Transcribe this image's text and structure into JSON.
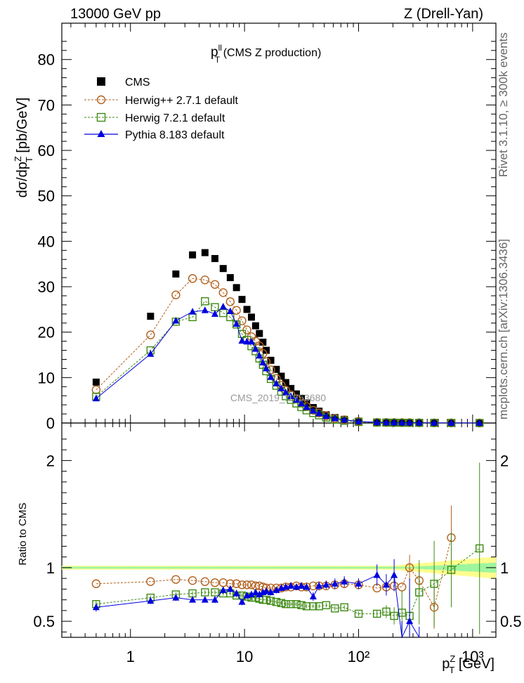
{
  "header": {
    "energy": "13000 GeV pp",
    "process": "Z (Drell-Yan)",
    "title_main": "p",
    "title_sup": "ll",
    "title_sub": "T",
    "title_rest": " (CMS Z production)",
    "watermark": "CMS_2019_I1753680",
    "side_top": "Rivet 3.1.10, ≥ 300k events",
    "side_bottom": "mcplots.cern.ch [arXiv:1306.3436]"
  },
  "legend": [
    {
      "label": "CMS",
      "color": "#000000",
      "marker": "square-filled"
    },
    {
      "label": "Herwig++ 2.7.1 default",
      "color": "#b2601c",
      "marker": "circle-open"
    },
    {
      "label": "Herwig 7.2.1 default",
      "color": "#3e8a14",
      "marker": "square-open"
    },
    {
      "label": "Pythia 8.183 default",
      "color": "#0000dd",
      "marker": "triangle-filled"
    }
  ],
  "chart_data": [
    {
      "type": "scatter",
      "panel": "main",
      "title": "pT^ll (CMS Z production)",
      "xlabel": "p_T^Z [GeV]",
      "ylabel": "dσ/dp_T^Z [pb/GeV]",
      "xscale": "log",
      "xlim": [
        0.25,
        1600
      ],
      "ylim": [
        0,
        88
      ],
      "yticks": [
        0,
        10,
        20,
        30,
        40,
        50,
        60,
        70,
        80
      ],
      "x": [
        0.5,
        1.5,
        2.5,
        3.5,
        4.5,
        5.5,
        6.5,
        7.5,
        8.5,
        9.5,
        10.5,
        11.5,
        12.5,
        13.5,
        14.5,
        15.5,
        17,
        19,
        21,
        23,
        25.5,
        28.5,
        31.5,
        35,
        40,
        45,
        52,
        62,
        75,
        100,
        145,
        175,
        205,
        240,
        280,
        340,
        460,
        650,
        1150
      ],
      "series": [
        {
          "name": "CMS",
          "values": [
            9,
            23.5,
            32.8,
            37,
            37.5,
            36.2,
            34,
            32,
            29.8,
            27.2,
            25,
            23.3,
            21.4,
            19.7,
            17.8,
            16,
            13.8,
            11.8,
            10.3,
            8.9,
            7.6,
            6.4,
            5.4,
            4.4,
            3.4,
            2.6,
            1.8,
            1.2,
            0.8,
            0.4,
            0.2,
            0.15,
            0.12,
            0.1,
            0.08,
            0.06,
            0.04,
            0.02,
            0.01
          ]
        },
        {
          "name": "Herwig++ 2.7.1 default",
          "values": [
            7.3,
            19.4,
            28.2,
            31.8,
            31.5,
            30.5,
            28.7,
            26.7,
            24.8,
            22.5,
            20.5,
            19,
            18,
            17,
            15.3,
            13.5,
            11.7,
            9.8,
            8.3,
            7.2,
            6.2,
            5.3,
            4.4,
            3.6,
            2.8,
            2.2,
            1.6,
            1.0,
            0.7,
            0.35,
            0.15,
            0.12,
            0.1,
            0.08,
            0.08,
            0.05,
            0.025,
            0.02,
            0.01
          ]
        },
        {
          "name": "Herwig 7.2.1 default",
          "values": [
            5.8,
            16,
            22.3,
            23.3,
            26.8,
            25.5,
            24.2,
            23.3,
            21.7,
            19.6,
            18.3,
            16.9,
            15.8,
            14.2,
            12.8,
            11.4,
            9.7,
            8.2,
            6.9,
            5.9,
            5.1,
            4.3,
            3.5,
            2.8,
            2.2,
            1.7,
            1.2,
            0.75,
            0.5,
            0.23,
            0.1,
            0.09,
            0.07,
            0.06,
            0.05,
            0.04,
            0.03,
            0.02,
            0.01
          ]
        },
        {
          "name": "Pythia 8.183 default",
          "values": [
            5.4,
            15.2,
            22.5,
            24.5,
            24.8,
            24.0,
            25.6,
            24.6,
            21.8,
            18.1,
            17.9,
            17.9,
            16.3,
            14.8,
            13.3,
            12.0,
            10.1,
            8.7,
            7.6,
            6.7,
            5.9,
            5.1,
            4.3,
            3.5,
            2.7,
            2.1,
            1.5,
            1.0,
            0.7,
            0.35,
            0.15,
            0.12,
            0.1,
            0.08,
            0.07,
            0.05,
            0.03,
            0.02,
            0.01
          ]
        }
      ]
    },
    {
      "type": "line",
      "panel": "ratio",
      "ylabel": "Ratio to CMS",
      "xlabel": "p_T^Z [GeV]",
      "xscale": "log",
      "xlim": [
        0.25,
        1600
      ],
      "ylim": [
        0.35,
        2.35
      ],
      "yticks": [
        0.5,
        1,
        2
      ],
      "xticks": [
        1,
        10,
        100,
        1000
      ],
      "xtick_labels": [
        "1",
        "10",
        "10²",
        "10³"
      ],
      "x": [
        0.5,
        1.5,
        2.5,
        3.5,
        4.5,
        5.5,
        6.5,
        7.5,
        8.5,
        9.5,
        10.5,
        11.5,
        12.5,
        13.5,
        14.5,
        15.5,
        17,
        19,
        21,
        23,
        25.5,
        28.5,
        31.5,
        35,
        40,
        45,
        52,
        62,
        75,
        100,
        145,
        175,
        205,
        240,
        280,
        340,
        460,
        650,
        1150
      ],
      "series": [
        {
          "name": "Herwig++ 2.7.1 default",
          "values": [
            0.85,
            0.87,
            0.89,
            0.88,
            0.87,
            0.86,
            0.86,
            0.85,
            0.85,
            0.84,
            0.84,
            0.84,
            0.83,
            0.83,
            0.82,
            0.81,
            0.81,
            0.81,
            0.81,
            0.82,
            0.82,
            0.83,
            0.82,
            0.82,
            0.83,
            0.83,
            0.83,
            0.84,
            0.85,
            0.84,
            0.81,
            0.82,
            0.83,
            0.82,
            1.0,
            0.88,
            0.63,
            1.28,
            null
          ],
          "errors": [
            0,
            0,
            0,
            0,
            0,
            0,
            0,
            0,
            0,
            0,
            0,
            0,
            0,
            0,
            0,
            0,
            0,
            0,
            0,
            0,
            0,
            0,
            0,
            0,
            0,
            0,
            0,
            0,
            0,
            0,
            0,
            0,
            0,
            0,
            0.12,
            0.1,
            0.2,
            0.3,
            0
          ]
        },
        {
          "name": "Herwig 7.2.1 default",
          "values": [
            0.66,
            0.72,
            0.75,
            0.76,
            0.77,
            0.77,
            0.76,
            0.76,
            0.74,
            0.74,
            0.73,
            0.72,
            0.72,
            0.71,
            0.7,
            0.7,
            0.69,
            0.68,
            0.67,
            0.66,
            0.66,
            0.66,
            0.65,
            0.64,
            0.64,
            0.64,
            0.65,
            0.62,
            0.63,
            0.57,
            0.57,
            0.59,
            0.55,
            0.58,
            0.55,
            0.77,
            0.85,
            0.98,
            1.18
          ],
          "errors": [
            0.03,
            0.02,
            0.02,
            0.02,
            0.02,
            0.02,
            0.02,
            0.02,
            0.02,
            0.02,
            0.02,
            0.02,
            0.02,
            0.02,
            0.02,
            0.02,
            0.02,
            0.02,
            0.02,
            0.02,
            0.02,
            0.02,
            0.02,
            0.02,
            0.02,
            0.02,
            0.02,
            0.02,
            0.02,
            0.02,
            0.03,
            0.06,
            0.08,
            0.2,
            0.25,
            0.3,
            0.4,
            0.35,
            0.8
          ]
        },
        {
          "name": "Pythia 8.183 default",
          "values": [
            0.63,
            0.69,
            0.72,
            0.7,
            0.7,
            0.7,
            0.79,
            0.8,
            0.76,
            0.68,
            0.74,
            0.75,
            0.77,
            0.75,
            0.77,
            0.78,
            0.77,
            0.79,
            0.81,
            0.82,
            0.83,
            0.82,
            0.83,
            0.82,
            0.73,
            0.83,
            0.84,
            0.85,
            0.87,
            0.85,
            0.93,
            0.84,
            0.93,
            0.2,
            0.5,
            0.15,
            null,
            null,
            null
          ],
          "errors": [
            0.04,
            0.03,
            0.03,
            0.02,
            0.02,
            0.03,
            0.03,
            0.03,
            0.03,
            0.03,
            0.02,
            0.02,
            0.03,
            0.03,
            0.03,
            0.03,
            0.03,
            0.03,
            0.03,
            0.03,
            0.03,
            0.03,
            0.03,
            0.03,
            0.04,
            0.04,
            0.04,
            0.05,
            0.05,
            0.05,
            0.1,
            0.1,
            0.15,
            0.3,
            0.4,
            0.3,
            0,
            0,
            0
          ]
        }
      ],
      "band_inner_color": "#9ef59e",
      "band_outer_color": "#fdfd8e"
    }
  ]
}
